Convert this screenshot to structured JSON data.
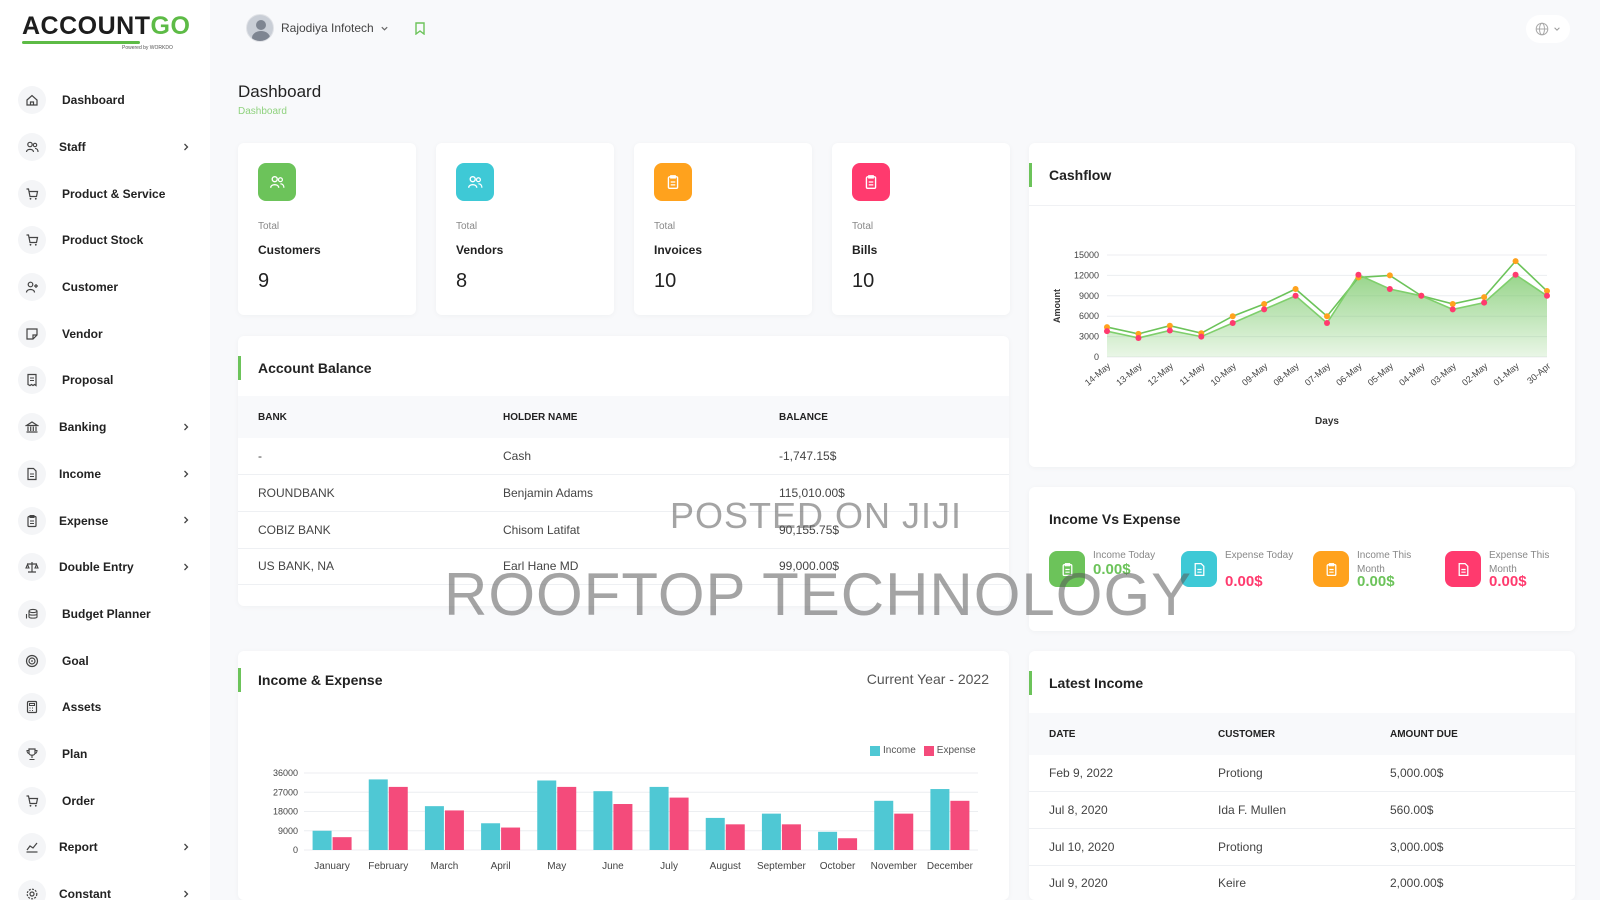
{
  "brand": {
    "logo_main": "ACCOUNT",
    "logo_accent": "GO",
    "logo_sub": "Powered by WORKDO"
  },
  "topbar": {
    "user_name": "Rajodiya Infotech"
  },
  "sidebar": {
    "items": [
      {
        "label": "Dashboard",
        "icon": "home-icon",
        "chevron": false
      },
      {
        "label": "Staff",
        "icon": "users-icon",
        "chevron": true
      },
      {
        "label": "Product & Service",
        "icon": "cart-icon",
        "chevron": false
      },
      {
        "label": "Product Stock",
        "icon": "cart-icon",
        "chevron": false
      },
      {
        "label": "Customer",
        "icon": "user-plus-icon",
        "chevron": false
      },
      {
        "label": "Vendor",
        "icon": "note-icon",
        "chevron": false
      },
      {
        "label": "Proposal",
        "icon": "receipt-icon",
        "chevron": false
      },
      {
        "label": "Banking",
        "icon": "bank-icon",
        "chevron": true
      },
      {
        "label": "Income",
        "icon": "file-icon",
        "chevron": true
      },
      {
        "label": "Expense",
        "icon": "clipboard-icon",
        "chevron": true
      },
      {
        "label": "Double Entry",
        "icon": "scale-icon",
        "chevron": true
      },
      {
        "label": "Budget Planner",
        "icon": "coins-icon",
        "chevron": false
      },
      {
        "label": "Goal",
        "icon": "target-icon",
        "chevron": false
      },
      {
        "label": "Assets",
        "icon": "calculator-icon",
        "chevron": false
      },
      {
        "label": "Plan",
        "icon": "trophy-icon",
        "chevron": false
      },
      {
        "label": "Order",
        "icon": "cart-icon",
        "chevron": false
      },
      {
        "label": "Report",
        "icon": "chart-line-icon",
        "chevron": true
      },
      {
        "label": "Constant",
        "icon": "settings-icon",
        "chevron": true
      }
    ]
  },
  "header": {
    "title": "Dashboard",
    "breadcrumb": "Dashboard"
  },
  "stats": [
    {
      "small": "Total",
      "label": "Customers",
      "value": "9",
      "color": "#6cc35a",
      "icon": "users-icon"
    },
    {
      "small": "Total",
      "label": "Vendors",
      "value": "8",
      "color": "#3ec9d6",
      "icon": "users-icon"
    },
    {
      "small": "Total",
      "label": "Invoices",
      "value": "10",
      "color": "#ffa21d",
      "icon": "clipboard-icon"
    },
    {
      "small": "Total",
      "label": "Bills",
      "value": "10",
      "color": "#ff3a6e",
      "icon": "clipboard-icon"
    }
  ],
  "account_balance": {
    "title": "Account Balance",
    "headers": [
      "BANK",
      "HOLDER NAME",
      "BALANCE"
    ],
    "rows": [
      [
        "-",
        "Cash",
        "-1,747.15$"
      ],
      [
        "ROUNDBANK",
        "Benjamin Adams",
        "115,010.00$"
      ],
      [
        "COBIZ BANK",
        "Chisom Latifat",
        "90,155.75$"
      ],
      [
        "US BANK, NA",
        "Earl Hane MD",
        "99,000.00$"
      ]
    ]
  },
  "cashflow": {
    "title": "Cashflow",
    "chart_data": {
      "type": "area",
      "title": "",
      "xlabel": "Days",
      "ylabel": "Amount",
      "ylim": [
        0,
        15000
      ],
      "yticks": [
        0,
        3000,
        6000,
        9000,
        12000,
        15000
      ],
      "x": [
        "14-May",
        "13-May",
        "12-May",
        "11-May",
        "10-May",
        "09-May",
        "08-May",
        "07-May",
        "06-May",
        "05-May",
        "04-May",
        "03-May",
        "02-May",
        "01-May",
        "30-Apr"
      ],
      "series": [
        {
          "values": [
            4400,
            3400,
            4600,
            3500,
            6000,
            7800,
            10000,
            6000,
            11700,
            12000,
            9000,
            7800,
            8800,
            14100,
            9700
          ],
          "color": "#6cc35a"
        },
        {
          "values": [
            3800,
            2800,
            3900,
            3000,
            5000,
            7000,
            9000,
            5000,
            12100,
            10000,
            9000,
            7000,
            8000,
            12100,
            9000
          ],
          "color": "#ff3a6e"
        }
      ],
      "grid": true
    }
  },
  "income_vs_expense": {
    "title": "Income Vs Expense",
    "items": [
      {
        "label": "Income Today",
        "value": "0.00$",
        "color": "#6cc35a",
        "icon": "clipboard-icon"
      },
      {
        "label": "Expense Today",
        "value": "0.00$",
        "color": "#3ec9d6",
        "value_color": "#ff3a6e",
        "icon": "file-icon"
      },
      {
        "label": "Income This Month",
        "value": "0.00$",
        "color": "#ffa21d",
        "value_color": "#6cc35a",
        "icon": "clipboard-icon"
      },
      {
        "label": "Expense This Month",
        "value": "0.00$",
        "color": "#ff3a6e",
        "value_color": "#ff3a6e",
        "icon": "file-icon"
      }
    ]
  },
  "income_expense": {
    "title": "Income & Expense",
    "subtitle": "Current Year - 2022",
    "chart_data": {
      "type": "bar",
      "title": "",
      "categories": [
        "January",
        "February",
        "March",
        "April",
        "May",
        "June",
        "July",
        "August",
        "September",
        "October",
        "November",
        "December"
      ],
      "ylim": [
        0,
        36000
      ],
      "yticks": [
        0,
        9000,
        18000,
        27000,
        36000
      ],
      "series": [
        {
          "name": "Income",
          "color": "#4fc8d4",
          "values": [
            9000,
            33000,
            20500,
            12500,
            32500,
            27500,
            29500,
            15000,
            17000,
            8500,
            23000,
            28500
          ]
        },
        {
          "name": "Expense",
          "color": "#f44b7b",
          "values": [
            6000,
            29500,
            18500,
            10500,
            29500,
            21500,
            24500,
            12000,
            12000,
            5500,
            17000,
            23000
          ]
        }
      ],
      "legend": "top-right",
      "grid": true
    }
  },
  "latest_income": {
    "title": "Latest Income",
    "headers": [
      "DATE",
      "CUSTOMER",
      "AMOUNT DUE"
    ],
    "rows": [
      [
        "Feb 9, 2022",
        "Protiong",
        "5,000.00$"
      ],
      [
        "Jul 8, 2020",
        "Ida F. Mullen",
        "560.00$"
      ],
      [
        "Jul 10, 2020",
        "Protiong",
        "3,000.00$"
      ],
      [
        "Jul 9, 2020",
        "Keire",
        "2,000.00$"
      ]
    ]
  },
  "watermarks": [
    "POSTED ON JIJI",
    "ROOFTOP TECHNOLOGY"
  ]
}
